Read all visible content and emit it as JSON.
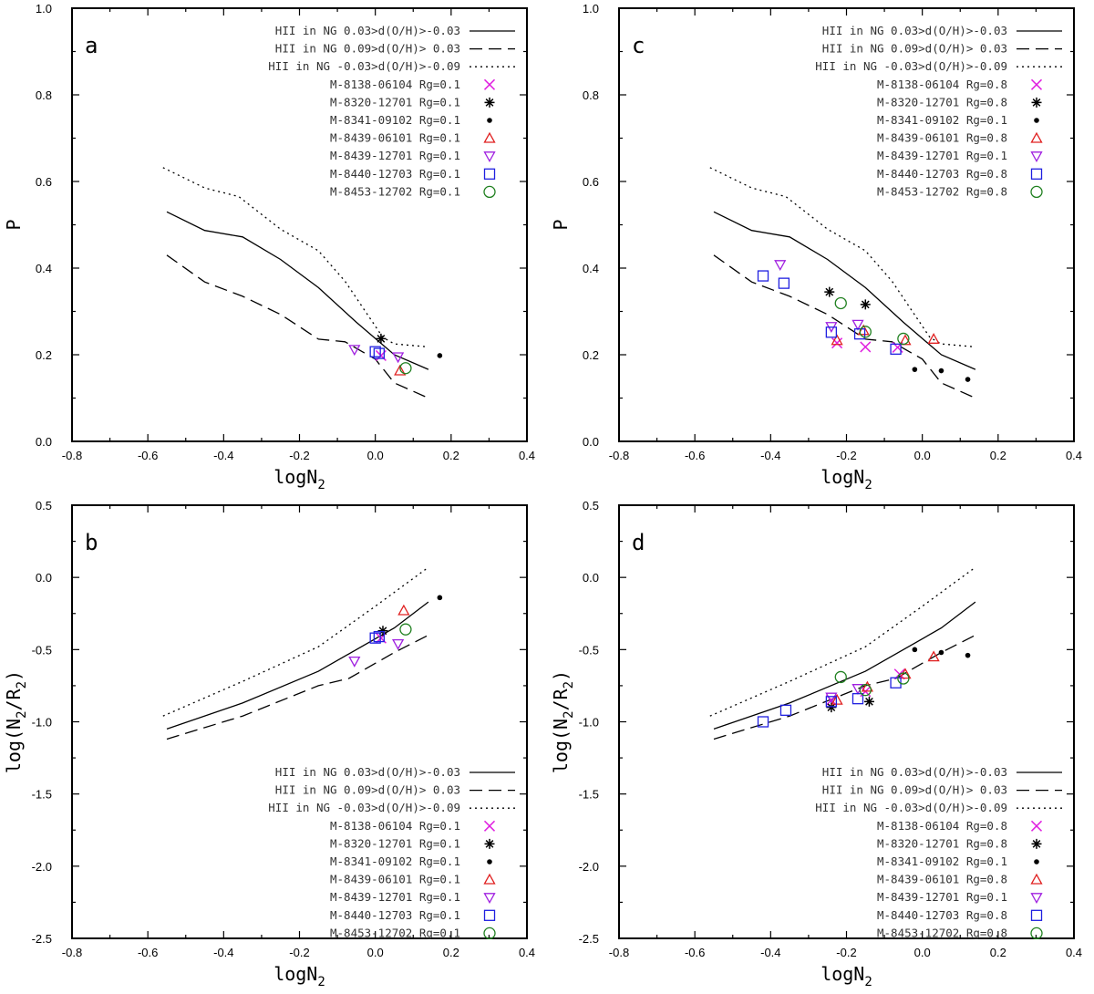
{
  "legend": {
    "lines": [
      {
        "label": "HII in NG  0.03>d(O/H)>-0.03",
        "dash": "solid"
      },
      {
        "label": "HII in NG  0.09>d(O/H)> 0.03",
        "dash": "dashed"
      },
      {
        "label": "HII in NG -0.03>d(O/H)>-0.09",
        "dash": "dotted"
      }
    ]
  },
  "series_styles": [
    {
      "key": "M-8138-06104",
      "marker": "x",
      "color": "#e020e0"
    },
    {
      "key": "M-8320-12701",
      "marker": "asterisk",
      "color": "#000000"
    },
    {
      "key": "M-8341-09102",
      "marker": "dot",
      "color": "#000000"
    },
    {
      "key": "M-8439-06101",
      "marker": "triangle-up",
      "color": "#e02020"
    },
    {
      "key": "M-8439-12701",
      "marker": "triangle-down",
      "color": "#a020e0"
    },
    {
      "key": "M-8440-12703",
      "marker": "square",
      "color": "#2020e0"
    },
    {
      "key": "M-8453-12702",
      "marker": "circle",
      "color": "#208020"
    }
  ],
  "chart_data": [
    {
      "id": "a",
      "type": "scatter",
      "letter": "a",
      "xlabel": "logN",
      "xlabel_sub": "2",
      "ylabel": "P",
      "xlim": [
        -0.8,
        0.4
      ],
      "ylim": [
        0.0,
        1.0
      ],
      "xticks": [
        "-0.8",
        "-0.6",
        "-0.4",
        "-0.2",
        "0.0",
        "0.2",
        "0.4"
      ],
      "yticks": [
        "0.0",
        "0.2",
        "0.4",
        "0.6",
        "0.8",
        "1.0"
      ],
      "legend_position": "top-right",
      "curves": {
        "solid": [
          [
            -0.55,
            0.53
          ],
          [
            -0.45,
            0.487
          ],
          [
            -0.35,
            0.472
          ],
          [
            -0.25,
            0.42
          ],
          [
            -0.15,
            0.355
          ],
          [
            -0.05,
            0.275
          ],
          [
            0.05,
            0.2
          ],
          [
            0.14,
            0.166
          ]
        ],
        "dashed": [
          [
            -0.55,
            0.43
          ],
          [
            -0.45,
            0.368
          ],
          [
            -0.35,
            0.335
          ],
          [
            -0.25,
            0.293
          ],
          [
            -0.15,
            0.236
          ],
          [
            -0.08,
            0.23
          ],
          [
            0.0,
            0.19
          ],
          [
            0.05,
            0.135
          ],
          [
            0.14,
            0.1
          ]
        ],
        "dotted": [
          [
            -0.56,
            0.632
          ],
          [
            -0.45,
            0.585
          ],
          [
            -0.36,
            0.565
          ],
          [
            -0.25,
            0.49
          ],
          [
            -0.15,
            0.44
          ],
          [
            -0.08,
            0.37
          ],
          [
            0.02,
            0.24
          ],
          [
            0.05,
            0.225
          ],
          [
            0.14,
            0.218
          ]
        ]
      },
      "series": [
        {
          "key": "M-8138-06104",
          "label": "M-8138-06104 Rg=0.1",
          "points": [
            [
              0.015,
              0.198
            ]
          ]
        },
        {
          "key": "M-8320-12701",
          "label": "M-8320-12701 Rg=0.1",
          "points": [
            [
              0.015,
              0.237
            ]
          ]
        },
        {
          "key": "M-8341-09102",
          "label": "M-8341-09102 Rg=0.1",
          "points": [
            [
              0.17,
              0.198
            ]
          ]
        },
        {
          "key": "M-8439-06101",
          "label": "M-8439-06101 Rg=0.1",
          "points": [
            [
              0.065,
              0.163
            ]
          ]
        },
        {
          "key": "M-8439-12701",
          "label": "M-8439-12701 Rg=0.1",
          "points": [
            [
              -0.055,
              0.212
            ],
            [
              0.06,
              0.195
            ]
          ]
        },
        {
          "key": "M-8440-12703",
          "label": "M-8440-12703 Rg=0.1",
          "points": [
            [
              0.0,
              0.207
            ],
            [
              0.01,
              0.203
            ]
          ]
        },
        {
          "key": "M-8453-12702",
          "label": "M-8453-12702 Rg=0.1",
          "points": [
            [
              0.08,
              0.169
            ]
          ]
        }
      ]
    },
    {
      "id": "c",
      "type": "scatter",
      "letter": "c",
      "xlabel": "logN",
      "xlabel_sub": "2",
      "ylabel": "P",
      "xlim": [
        -0.8,
        0.4
      ],
      "ylim": [
        0.0,
        1.0
      ],
      "xticks": [
        "-0.8",
        "-0.6",
        "-0.4",
        "-0.2",
        "0.0",
        "0.2",
        "0.4"
      ],
      "yticks": [
        "0.0",
        "0.2",
        "0.4",
        "0.6",
        "0.8",
        "1.0"
      ],
      "legend_position": "top-right",
      "curves": {
        "solid": [
          [
            -0.55,
            0.53
          ],
          [
            -0.45,
            0.487
          ],
          [
            -0.35,
            0.472
          ],
          [
            -0.25,
            0.42
          ],
          [
            -0.15,
            0.355
          ],
          [
            -0.05,
            0.275
          ],
          [
            0.05,
            0.2
          ],
          [
            0.14,
            0.166
          ]
        ],
        "dashed": [
          [
            -0.55,
            0.43
          ],
          [
            -0.45,
            0.368
          ],
          [
            -0.35,
            0.335
          ],
          [
            -0.25,
            0.293
          ],
          [
            -0.15,
            0.236
          ],
          [
            -0.08,
            0.23
          ],
          [
            0.0,
            0.19
          ],
          [
            0.05,
            0.135
          ],
          [
            0.14,
            0.1
          ]
        ],
        "dotted": [
          [
            -0.56,
            0.632
          ],
          [
            -0.45,
            0.585
          ],
          [
            -0.36,
            0.565
          ],
          [
            -0.25,
            0.49
          ],
          [
            -0.15,
            0.44
          ],
          [
            -0.08,
            0.37
          ],
          [
            0.02,
            0.24
          ],
          [
            0.05,
            0.225
          ],
          [
            0.14,
            0.218
          ]
        ]
      },
      "series": [
        {
          "key": "M-8138-06104",
          "label": "M-8138-06104 Rg=0.8",
          "points": [
            [
              -0.225,
              0.227
            ],
            [
              -0.15,
              0.218
            ],
            [
              -0.065,
              0.217
            ]
          ]
        },
        {
          "key": "M-8320-12701",
          "label": "M-8320-12701 Rg=0.8",
          "points": [
            [
              -0.245,
              0.345
            ],
            [
              -0.15,
              0.316
            ]
          ]
        },
        {
          "key": "M-8341-09102",
          "label": "M-8341-09102 Rg=0.1",
          "points": [
            [
              -0.02,
              0.166
            ],
            [
              0.05,
              0.163
            ],
            [
              0.12,
              0.143
            ]
          ]
        },
        {
          "key": "M-8439-06101",
          "label": "M-8439-06101 Rg=0.8",
          "points": [
            [
              -0.225,
              0.233
            ],
            [
              -0.155,
              0.256
            ],
            [
              -0.045,
              0.233
            ],
            [
              0.03,
              0.236
            ]
          ]
        },
        {
          "key": "M-8439-12701",
          "label": "M-8439-12701 Rg=0.1",
          "points": [
            [
              -0.375,
              0.408
            ],
            [
              -0.24,
              0.265
            ],
            [
              -0.17,
              0.27
            ]
          ]
        },
        {
          "key": "M-8440-12703",
          "label": "M-8440-12703 Rg=0.8",
          "points": [
            [
              -0.42,
              0.382
            ],
            [
              -0.365,
              0.365
            ],
            [
              -0.24,
              0.252
            ],
            [
              -0.165,
              0.248
            ],
            [
              -0.07,
              0.213
            ]
          ]
        },
        {
          "key": "M-8453-12702",
          "label": "M-8453-12702 Rg=0.8",
          "points": [
            [
              -0.215,
              0.319
            ],
            [
              -0.15,
              0.253
            ],
            [
              -0.05,
              0.237
            ]
          ]
        }
      ]
    },
    {
      "id": "b",
      "type": "scatter",
      "letter": "b",
      "xlabel": "logN",
      "xlabel_sub": "2",
      "ylabel": "log(N",
      "ylabel_sub1": "2",
      "ylabel_mid": "/R",
      "ylabel_sub2": "2",
      "ylabel_end": ")",
      "xlim": [
        -0.8,
        0.4
      ],
      "ylim": [
        -2.5,
        0.5
      ],
      "xticks": [
        "-0.8",
        "-0.6",
        "-0.4",
        "-0.2",
        "0.0",
        "0.2",
        "0.4"
      ],
      "yticks": [
        "-2.5",
        "-2.0",
        "-1.5",
        "-1.0",
        "-0.5",
        "0.0",
        "0.5"
      ],
      "legend_position": "bottom-right",
      "curves": {
        "solid": [
          [
            -0.55,
            -1.05
          ],
          [
            -0.35,
            -0.87
          ],
          [
            -0.15,
            -0.65
          ],
          [
            0.05,
            -0.35
          ],
          [
            0.14,
            -0.17
          ]
        ],
        "dashed": [
          [
            -0.55,
            -1.12
          ],
          [
            -0.35,
            -0.96
          ],
          [
            -0.15,
            -0.75
          ],
          [
            -0.07,
            -0.7
          ],
          [
            0.05,
            -0.52
          ],
          [
            0.14,
            -0.4
          ]
        ],
        "dotted": [
          [
            -0.56,
            -0.96
          ],
          [
            -0.35,
            -0.72
          ],
          [
            -0.15,
            -0.48
          ],
          [
            0.0,
            -0.2
          ],
          [
            0.14,
            0.07
          ]
        ]
      },
      "series": [
        {
          "key": "M-8138-06104",
          "label": "M-8138-06104 Rg=0.1",
          "points": [
            [
              0.015,
              -0.42
            ]
          ]
        },
        {
          "key": "M-8320-12701",
          "label": "M-8320-12701 Rg=0.1",
          "points": [
            [
              0.02,
              -0.37
            ]
          ]
        },
        {
          "key": "M-8341-09102",
          "label": "M-8341-09102 Rg=0.1",
          "points": [
            [
              0.17,
              -0.14
            ]
          ]
        },
        {
          "key": "M-8439-06101",
          "label": "M-8439-06101 Rg=0.1",
          "points": [
            [
              0.075,
              -0.23
            ]
          ]
        },
        {
          "key": "M-8439-12701",
          "label": "M-8439-12701 Rg=0.1",
          "points": [
            [
              -0.055,
              -0.58
            ],
            [
              0.06,
              -0.46
            ]
          ]
        },
        {
          "key": "M-8440-12703",
          "label": "M-8440-12703 Rg=0.1",
          "points": [
            [
              0.0,
              -0.42
            ],
            [
              0.01,
              -0.41
            ]
          ]
        },
        {
          "key": "M-8453-12702",
          "label": "M-8453-12702 Rg=0.1",
          "points": [
            [
              0.08,
              -0.36
            ]
          ]
        }
      ]
    },
    {
      "id": "d",
      "type": "scatter",
      "letter": "d",
      "xlabel": "logN",
      "xlabel_sub": "2",
      "ylabel": "log(N",
      "ylabel_sub1": "2",
      "ylabel_mid": "/R",
      "ylabel_sub2": "2",
      "ylabel_end": ")",
      "xlim": [
        -0.8,
        0.4
      ],
      "ylim": [
        -2.5,
        0.5
      ],
      "xticks": [
        "-0.8",
        "-0.6",
        "-0.4",
        "-0.2",
        "0.0",
        "0.2",
        "0.4"
      ],
      "yticks": [
        "-2.5",
        "-2.0",
        "-1.5",
        "-1.0",
        "-0.5",
        "0.0",
        "0.5"
      ],
      "legend_position": "bottom-right",
      "curves": {
        "solid": [
          [
            -0.55,
            -1.05
          ],
          [
            -0.35,
            -0.87
          ],
          [
            -0.15,
            -0.65
          ],
          [
            0.05,
            -0.35
          ],
          [
            0.14,
            -0.17
          ]
        ],
        "dashed": [
          [
            -0.55,
            -1.12
          ],
          [
            -0.35,
            -0.96
          ],
          [
            -0.15,
            -0.75
          ],
          [
            -0.07,
            -0.7
          ],
          [
            0.05,
            -0.52
          ],
          [
            0.14,
            -0.4
          ]
        ],
        "dotted": [
          [
            -0.56,
            -0.96
          ],
          [
            -0.35,
            -0.72
          ],
          [
            -0.15,
            -0.48
          ],
          [
            0.0,
            -0.2
          ],
          [
            0.14,
            0.07
          ]
        ]
      },
      "series": [
        {
          "key": "M-8138-06104",
          "label": "M-8138-06104 Rg=0.8",
          "points": [
            [
              -0.24,
              -0.85
            ],
            [
              -0.15,
              -0.79
            ],
            [
              -0.06,
              -0.67
            ]
          ]
        },
        {
          "key": "M-8320-12701",
          "label": "M-8320-12701 Rg=0.8",
          "points": [
            [
              -0.24,
              -0.9
            ],
            [
              -0.14,
              -0.86
            ]
          ]
        },
        {
          "key": "M-8341-09102",
          "label": "M-8341-09102 Rg=0.1",
          "points": [
            [
              -0.02,
              -0.5
            ],
            [
              0.05,
              -0.52
            ],
            [
              0.12,
              -0.54
            ]
          ]
        },
        {
          "key": "M-8439-06101",
          "label": "M-8439-06101 Rg=0.8",
          "points": [
            [
              -0.225,
              -0.85
            ],
            [
              -0.145,
              -0.76
            ],
            [
              -0.045,
              -0.67
            ],
            [
              0.03,
              -0.55
            ]
          ]
        },
        {
          "key": "M-8439-12701",
          "label": "M-8439-12701 Rg=0.1",
          "points": [
            [
              -0.24,
              -0.83
            ],
            [
              -0.17,
              -0.77
            ]
          ]
        },
        {
          "key": "M-8440-12703",
          "label": "M-8440-12703 Rg=0.8",
          "points": [
            [
              -0.42,
              -1.0
            ],
            [
              -0.36,
              -0.92
            ],
            [
              -0.24,
              -0.86
            ],
            [
              -0.17,
              -0.84
            ],
            [
              -0.07,
              -0.73
            ]
          ]
        },
        {
          "key": "M-8453-12702",
          "label": "M-8453-12702 Rg=0.8",
          "points": [
            [
              -0.215,
              -0.69
            ],
            [
              -0.15,
              -0.78
            ],
            [
              -0.05,
              -0.7
            ]
          ]
        }
      ]
    }
  ]
}
